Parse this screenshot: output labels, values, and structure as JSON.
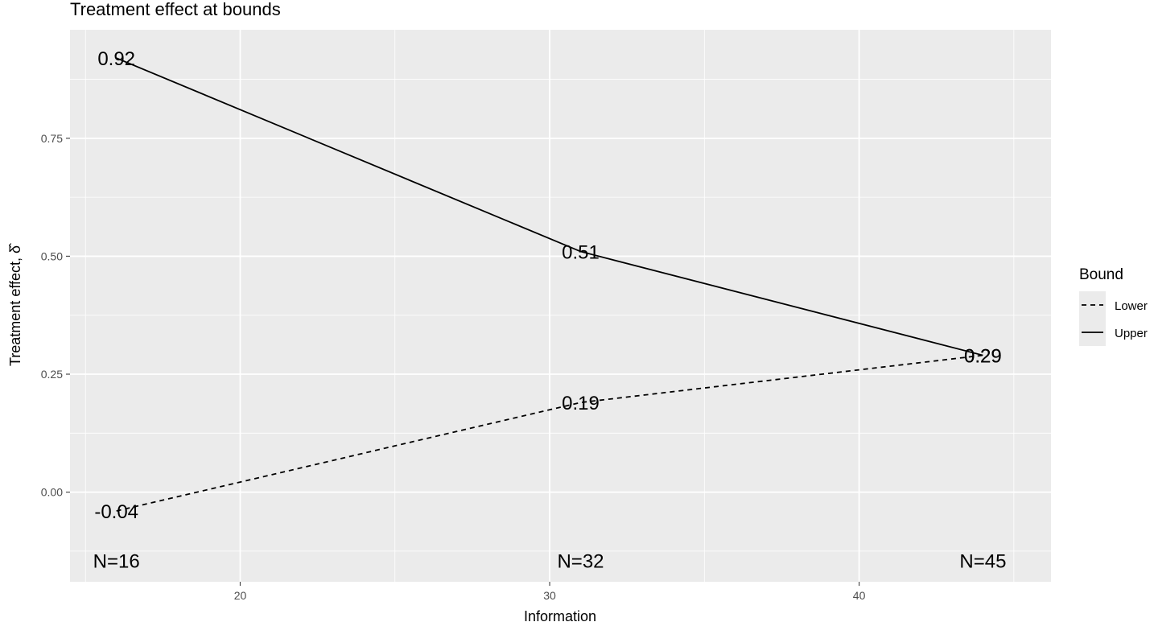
{
  "chart_data": {
    "type": "line",
    "title": "Treatment effect at bounds",
    "xlabel": "Information",
    "ylabel": "Treatment effect, δ̂",
    "xlim": [
      14.5,
      46.2
    ],
    "ylim": [
      -0.19,
      0.98
    ],
    "x_ticks": [
      {
        "value": 20,
        "label": "20"
      },
      {
        "value": 30,
        "label": "30"
      },
      {
        "value": 40,
        "label": "40"
      }
    ],
    "x_minor_ticks": [
      15,
      25,
      35,
      45
    ],
    "y_ticks": [
      {
        "value": 0.0,
        "label": "0.00"
      },
      {
        "value": 0.25,
        "label": "0.25"
      },
      {
        "value": 0.5,
        "label": "0.50"
      },
      {
        "value": 0.75,
        "label": "0.75"
      }
    ],
    "y_minor_ticks": [
      -0.125,
      0.125,
      0.375,
      0.625,
      0.875
    ],
    "grid": true,
    "legend": {
      "title": "Bound",
      "position": "right"
    },
    "series": [
      {
        "name": "Lower",
        "line_style": "dashed",
        "x": [
          16,
          31,
          44
        ],
        "y": [
          -0.04,
          0.19,
          0.29
        ],
        "labels": [
          "-0.04",
          "0.19",
          "0.29"
        ]
      },
      {
        "name": "Upper",
        "line_style": "solid",
        "x": [
          16,
          31,
          44
        ],
        "y": [
          0.92,
          0.51,
          0.29
        ],
        "labels": [
          "0.92",
          "0.51",
          "0.29"
        ]
      }
    ],
    "annotations": [
      {
        "x": 16,
        "y": -0.145,
        "text": "N=16"
      },
      {
        "x": 31,
        "y": -0.145,
        "text": "N=32"
      },
      {
        "x": 44,
        "y": -0.145,
        "text": "N=45"
      }
    ],
    "colors": {
      "panel": "#ebebeb",
      "grid": "#ffffff",
      "line": "#000000",
      "tick": "#4d4d4d"
    }
  }
}
